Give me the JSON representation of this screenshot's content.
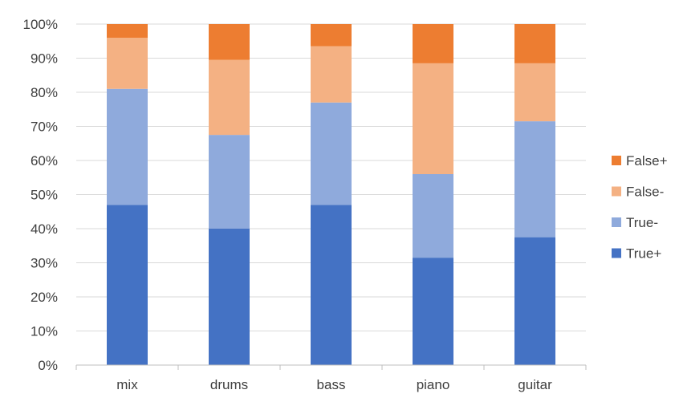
{
  "chart_data": {
    "type": "bar",
    "stacked": true,
    "percent_stacked": true,
    "title": "",
    "xlabel": "",
    "ylabel": "",
    "categories": [
      "mix",
      "drums",
      "bass",
      "piano",
      "guitar"
    ],
    "ylim": [
      0,
      100
    ],
    "yticks": [
      "0%",
      "10%",
      "20%",
      "30%",
      "40%",
      "50%",
      "60%",
      "70%",
      "80%",
      "90%",
      "100%"
    ],
    "grid": true,
    "legend_position": "right",
    "series": [
      {
        "name": "True+",
        "color": "#4472C4",
        "values": [
          47,
          40,
          47,
          31.5,
          37.5
        ]
      },
      {
        "name": "True-",
        "color": "#8FAADC",
        "values": [
          34,
          27.5,
          30,
          24.5,
          34
        ]
      },
      {
        "name": "False-",
        "color": "#F4B183",
        "values": [
          15,
          22,
          16.5,
          32.5,
          17
        ]
      },
      {
        "name": "False+",
        "color": "#ED7D31",
        "values": [
          4,
          10.5,
          6.5,
          11.5,
          11.5
        ]
      }
    ],
    "legend_order": [
      "False+",
      "False-",
      "True-",
      "True+"
    ]
  }
}
